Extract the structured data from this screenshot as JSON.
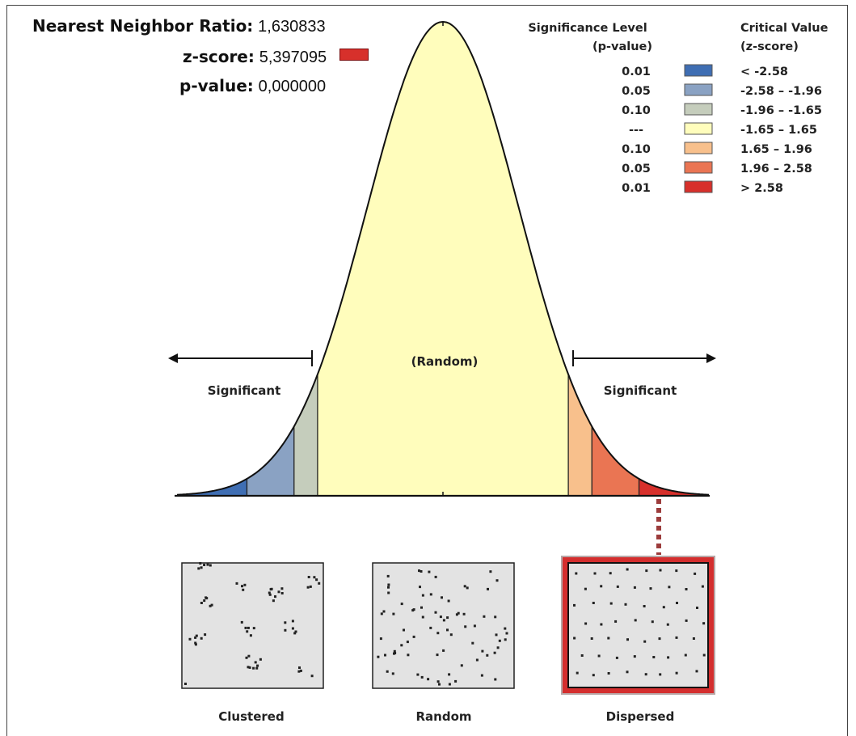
{
  "stats": {
    "ratio_label": "Nearest Neighbor Ratio:",
    "ratio_value": "1,630833",
    "z_label": "z-score:",
    "z_value": "5,397095",
    "p_label": "p-value:",
    "p_value": "0,000000",
    "z_swatch_color": "#d7302b"
  },
  "legend": {
    "col1_header_line1": "Significance Level",
    "col1_header_line2": "(p-value)",
    "col2_header_line1": "Critical Value",
    "col2_header_line2": "(z-score)",
    "rows": [
      {
        "p": "0.01",
        "z": "< -2.58",
        "color": "#3f6eb3"
      },
      {
        "p": "0.05",
        "z": "-2.58 – -1.96",
        "color": "#8aa2c3"
      },
      {
        "p": "0.10",
        "z": "-1.96 – -1.65",
        "color": "#c5cdbc"
      },
      {
        "p": "---",
        "z": "-1.65 – 1.65",
        "color": "#fffdbc"
      },
      {
        "p": "0.10",
        "z": "1.65 – 1.96",
        "color": "#f8c08c"
      },
      {
        "p": "0.05",
        "z": "1.96 – 2.58",
        "color": "#ea7553"
      },
      {
        "p": "0.01",
        "z": "> 2.58",
        "color": "#d7302b"
      }
    ]
  },
  "curve": {
    "center_label": "(Random)",
    "left_label": "Significant",
    "right_label": "Significant",
    "marker_color": "#9c3c3c"
  },
  "patterns": [
    {
      "label": "Clustered",
      "highlighted": false
    },
    {
      "label": "Random",
      "highlighted": false
    },
    {
      "label": "Dispersed",
      "highlighted": true
    }
  ]
}
